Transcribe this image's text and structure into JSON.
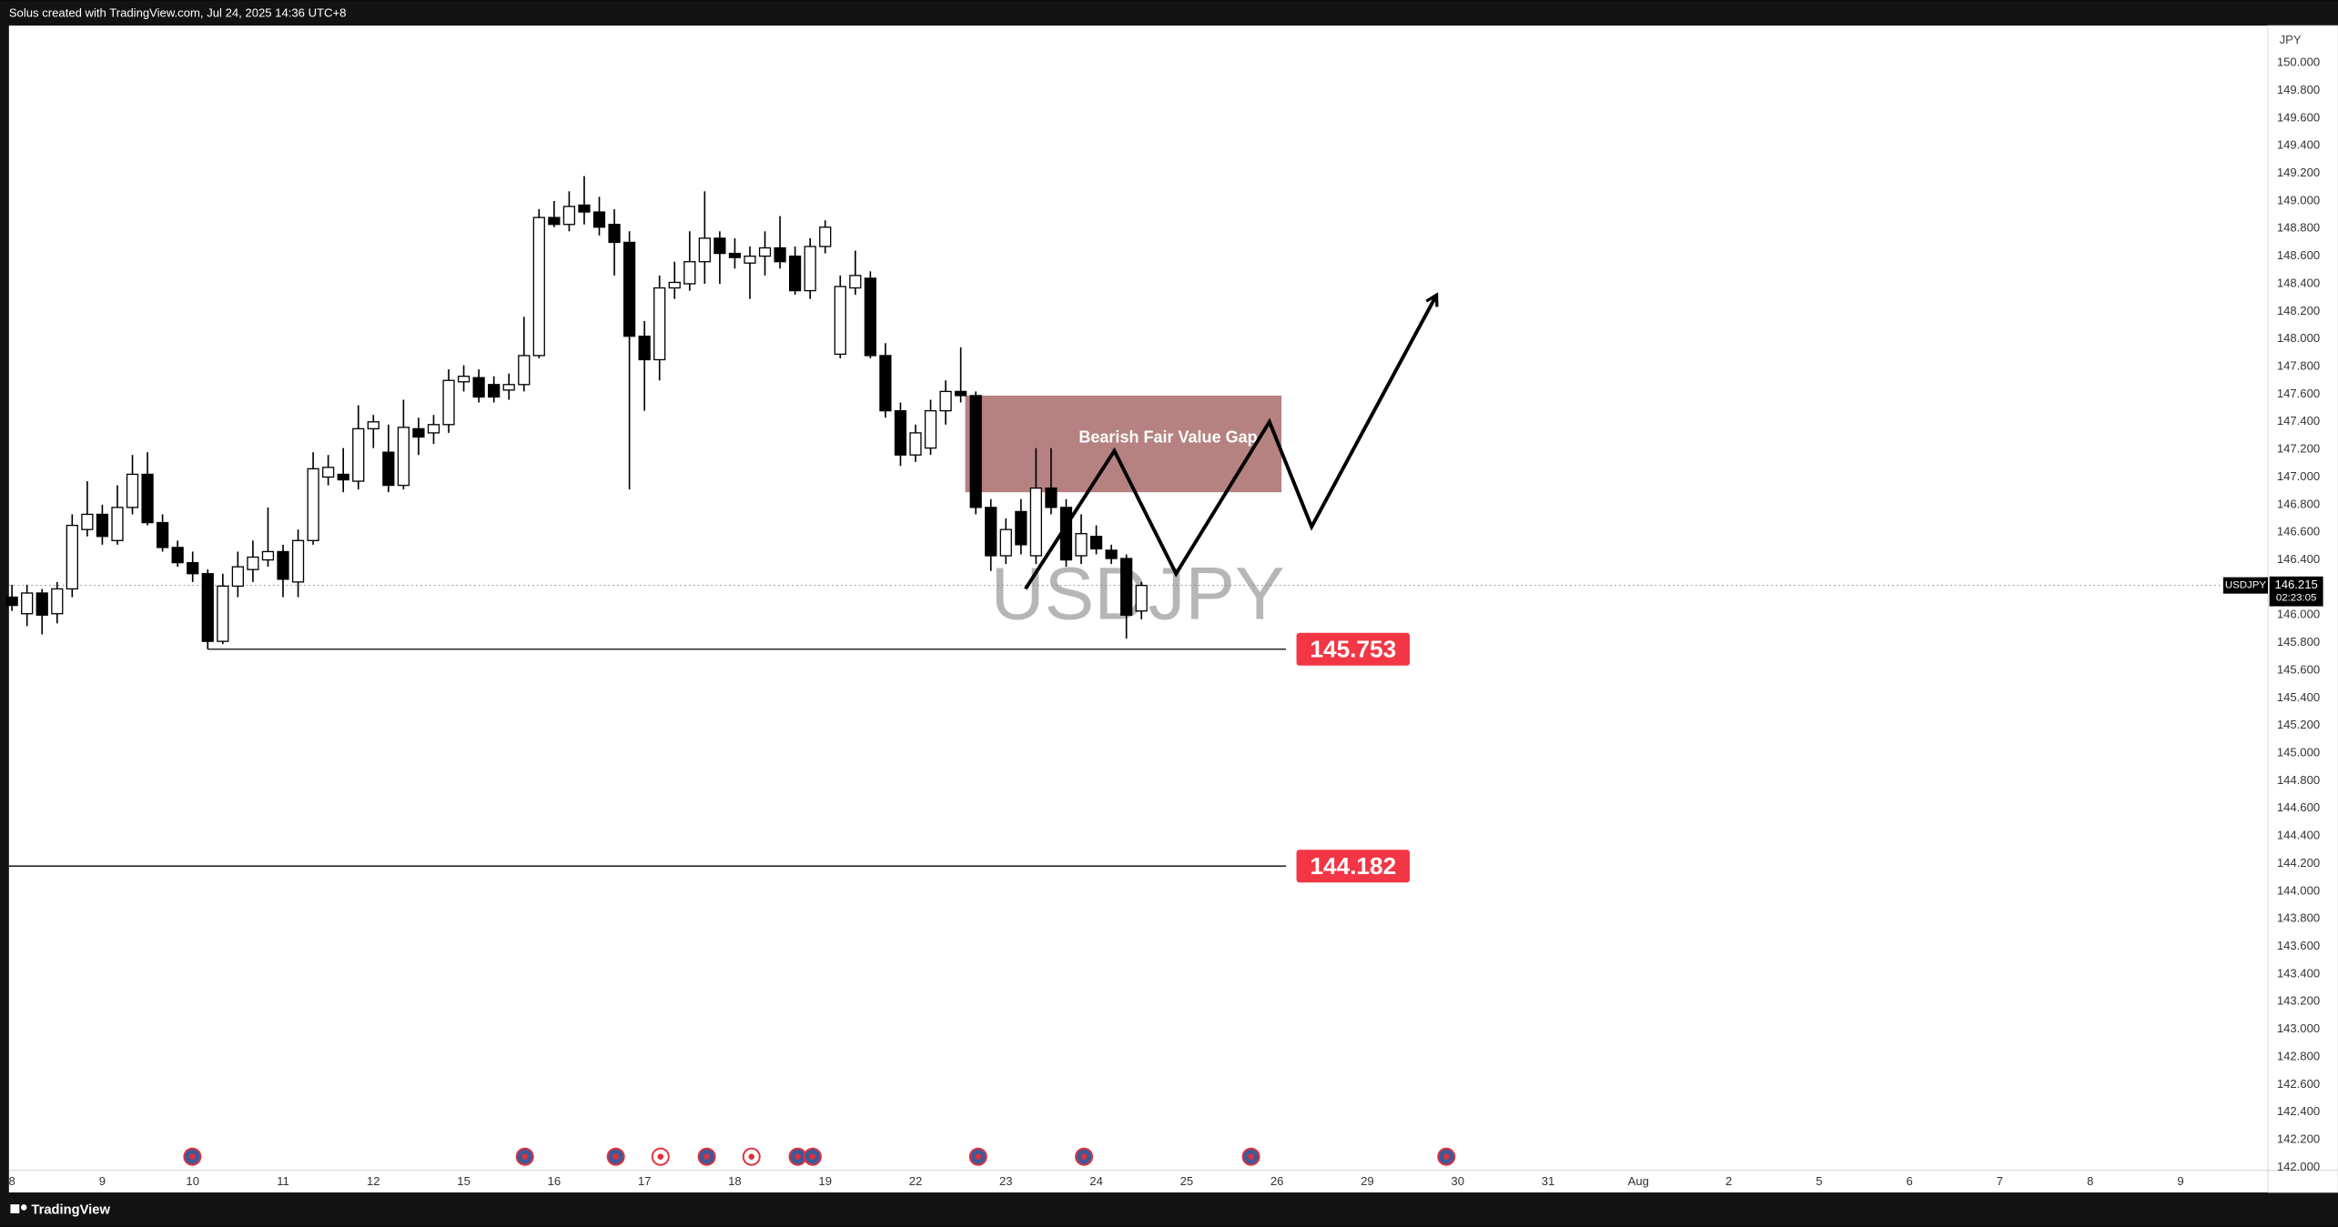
{
  "chart_data": {
    "type": "candlestick",
    "header": "Solus created with TradingView.com, Jul 24, 2025 14:36 UTC+8",
    "footer": "TradingView",
    "symbol": "USDJPY",
    "currency": "JPY",
    "countdown": "02:23:05",
    "up_color": "#ffffff",
    "down_color": "#000000",
    "x": [
      0,
      1,
      2,
      3,
      4,
      5,
      6,
      7,
      8,
      9,
      10,
      11,
      12,
      13,
      14,
      15,
      16,
      17,
      18,
      19,
      20,
      21,
      22,
      23,
      24,
      25,
      26,
      27,
      28,
      29,
      30,
      31,
      32,
      33,
      34,
      35,
      36,
      37,
      38,
      39,
      40,
      41,
      42,
      43,
      44,
      45,
      46,
      47,
      48,
      49,
      50,
      51,
      52,
      53,
      54,
      55,
      56,
      57,
      58,
      59,
      60,
      61,
      62,
      63,
      64,
      65,
      66,
      67,
      68,
      69,
      70,
      71,
      72,
      73,
      74,
      75
    ],
    "open": [
      146.13,
      146.01,
      146.16,
      146.01,
      146.19,
      146.62,
      146.73,
      146.54,
      146.78,
      147.02,
      146.67,
      146.49,
      146.38,
      146.3,
      145.81,
      146.21,
      146.33,
      146.4,
      146.46,
      146.24,
      146.54,
      147.0,
      147.02,
      146.97,
      147.35,
      147.18,
      146.94,
      147.35,
      147.32,
      147.38,
      147.69,
      147.72,
      147.67,
      147.63,
      147.67,
      147.88,
      148.88,
      148.83,
      148.97,
      148.92,
      148.83,
      148.7,
      148.02,
      147.85,
      148.37,
      148.4,
      148.56,
      148.73,
      148.62,
      148.55,
      148.6,
      148.66,
      148.6,
      148.35,
      148.67,
      147.89,
      148.37,
      148.44,
      147.88,
      147.48,
      147.16,
      147.21,
      147.48,
      147.62,
      147.59,
      146.78,
      146.43,
      146.75,
      146.43,
      146.92,
      146.78,
      146.43,
      146.57,
      146.47,
      146.41,
      146.03
    ],
    "high": [
      146.22,
      146.22,
      146.19,
      146.24,
      146.73,
      146.97,
      146.8,
      146.94,
      147.16,
      147.18,
      146.73,
      146.54,
      146.46,
      146.33,
      146.3,
      146.46,
      146.54,
      146.78,
      146.51,
      146.62,
      147.18,
      147.16,
      147.21,
      147.52,
      147.45,
      147.38,
      147.56,
      147.43,
      147.45,
      147.78,
      147.81,
      147.78,
      147.73,
      147.75,
      148.16,
      148.94,
      149.0,
      149.07,
      149.18,
      149.03,
      148.94,
      148.78,
      148.13,
      148.46,
      148.56,
      148.78,
      149.07,
      148.78,
      148.73,
      148.67,
      148.78,
      148.89,
      148.67,
      148.73,
      148.86,
      148.46,
      148.64,
      148.49,
      147.97,
      147.54,
      147.38,
      147.56,
      147.7,
      147.94,
      147.62,
      146.84,
      146.7,
      146.84,
      147.21,
      147.21,
      146.84,
      146.73,
      146.65,
      146.51,
      146.44,
      146.24
    ],
    "low": [
      146.03,
      145.92,
      145.86,
      145.94,
      146.13,
      146.57,
      146.51,
      146.51,
      146.73,
      146.65,
      146.46,
      146.35,
      146.24,
      145.753,
      145.79,
      146.13,
      146.24,
      146.35,
      146.13,
      146.13,
      146.51,
      146.94,
      146.89,
      146.91,
      147.21,
      146.89,
      146.91,
      147.16,
      147.24,
      147.32,
      147.62,
      147.54,
      147.54,
      147.56,
      147.62,
      147.86,
      148.81,
      148.78,
      148.83,
      148.75,
      148.46,
      146.91,
      147.48,
      147.7,
      148.29,
      148.35,
      148.4,
      148.4,
      148.51,
      148.29,
      148.46,
      148.51,
      148.32,
      148.29,
      148.62,
      147.86,
      148.32,
      147.86,
      147.43,
      147.08,
      147.11,
      147.16,
      147.38,
      147.54,
      146.73,
      146.32,
      146.37,
      146.44,
      146.37,
      146.73,
      146.35,
      146.37,
      146.44,
      146.37,
      145.83,
      145.97
    ],
    "close": [
      146.07,
      146.16,
      146.0,
      146.19,
      146.65,
      146.73,
      146.57,
      146.78,
      147.02,
      146.67,
      146.49,
      146.38,
      146.3,
      145.81,
      146.21,
      146.35,
      146.42,
      146.46,
      146.26,
      146.54,
      147.06,
      147.07,
      146.98,
      147.35,
      147.4,
      146.94,
      147.36,
      147.29,
      147.38,
      147.7,
      147.73,
      147.58,
      147.58,
      147.67,
      147.88,
      148.88,
      148.83,
      148.96,
      148.92,
      148.81,
      148.7,
      148.02,
      147.85,
      148.37,
      148.41,
      148.56,
      148.73,
      148.62,
      148.59,
      148.6,
      148.66,
      148.56,
      148.35,
      148.67,
      148.81,
      148.38,
      148.46,
      147.88,
      147.48,
      147.16,
      147.32,
      147.48,
      147.62,
      147.59,
      146.78,
      146.43,
      146.62,
      146.51,
      146.92,
      146.78,
      146.4,
      146.59,
      146.48,
      146.41,
      146.0,
      146.215
    ],
    "xlim": [
      -0.2,
      149.8
    ],
    "ylim": [
      141.98,
      150.27
    ],
    "xticks": [
      {
        "value": 0,
        "label": "8"
      },
      {
        "value": 6,
        "label": "9"
      },
      {
        "value": 12,
        "label": "10"
      },
      {
        "value": 18,
        "label": "11"
      },
      {
        "value": 24,
        "label": "12"
      },
      {
        "value": 30,
        "label": "15"
      },
      {
        "value": 36,
        "label": "16"
      },
      {
        "value": 42,
        "label": "17"
      },
      {
        "value": 48,
        "label": "18"
      },
      {
        "value": 54,
        "label": "19"
      },
      {
        "value": 60,
        "label": "22"
      },
      {
        "value": 66,
        "label": "23"
      },
      {
        "value": 72,
        "label": "24"
      },
      {
        "value": 78,
        "label": "25"
      },
      {
        "value": 84,
        "label": "26"
      },
      {
        "value": 90,
        "label": "29"
      },
      {
        "value": 96,
        "label": "30"
      },
      {
        "value": 102,
        "label": "31"
      },
      {
        "value": 108,
        "label": "Aug"
      },
      {
        "value": 114,
        "label": "2"
      },
      {
        "value": 120,
        "label": "5"
      },
      {
        "value": 126,
        "label": "6"
      },
      {
        "value": 132,
        "label": "7"
      },
      {
        "value": 138,
        "label": "8"
      },
      {
        "value": 144,
        "label": "9"
      }
    ],
    "yticks": [
      {
        "value": 150,
        "label": "150.000"
      },
      {
        "value": 149.8,
        "label": "149.800"
      },
      {
        "value": 149.6,
        "label": "149.600"
      },
      {
        "value": 149.4,
        "label": "149.400"
      },
      {
        "value": 149.2,
        "label": "149.200"
      },
      {
        "value": 149,
        "label": "149.000"
      },
      {
        "value": 148.8,
        "label": "148.800"
      },
      {
        "value": 148.6,
        "label": "148.600"
      },
      {
        "value": 148.4,
        "label": "148.400"
      },
      {
        "value": 148.2,
        "label": "148.200"
      },
      {
        "value": 148,
        "label": "148.000"
      },
      {
        "value": 147.8,
        "label": "147.800"
      },
      {
        "value": 147.6,
        "label": "147.600"
      },
      {
        "value": 147.4,
        "label": "147.400"
      },
      {
        "value": 147.2,
        "label": "147.200"
      },
      {
        "value": 147,
        "label": "147.000"
      },
      {
        "value": 146.8,
        "label": "146.800"
      },
      {
        "value": 146.6,
        "label": "146.600"
      },
      {
        "value": 146.4,
        "label": "146.400"
      },
      {
        "value": 146.2,
        "label": "146.200"
      },
      {
        "value": 146,
        "label": "146.000"
      },
      {
        "value": 145.8,
        "label": "145.800"
      },
      {
        "value": 145.6,
        "label": "145.600"
      },
      {
        "value": 145.4,
        "label": "145.400"
      },
      {
        "value": 145.2,
        "label": "145.200"
      },
      {
        "value": 145,
        "label": "145.000"
      },
      {
        "value": 144.8,
        "label": "144.800"
      },
      {
        "value": 144.6,
        "label": "144.600"
      },
      {
        "value": 144.4,
        "label": "144.400"
      },
      {
        "value": 144.2,
        "label": "144.200"
      },
      {
        "value": 144,
        "label": "144.000"
      },
      {
        "value": 143.8,
        "label": "143.800"
      },
      {
        "value": 143.6,
        "label": "143.600"
      },
      {
        "value": 143.4,
        "label": "143.400"
      },
      {
        "value": 143.2,
        "label": "143.200"
      },
      {
        "value": 143,
        "label": "143.000"
      },
      {
        "value": 142.8,
        "label": "142.800"
      },
      {
        "value": 142.6,
        "label": "142.600"
      },
      {
        "value": 142.4,
        "label": "142.400"
      },
      {
        "value": 142.2,
        "label": "142.200"
      },
      {
        "value": 142,
        "label": "142.000"
      }
    ],
    "zone": {
      "label": "Bearish Fair Value Gap",
      "color": "#a96b6b",
      "top": 147.59,
      "bottom": 146.89,
      "x_start": 63.3,
      "x_end": 84.3
    },
    "levels": [
      {
        "value": 145.753,
        "x_start": 13.0,
        "x_end": 84.6,
        "color": "#f23645"
      },
      {
        "value": 144.182,
        "x_start": -0.2,
        "x_end": 84.6,
        "color": "#f23645"
      }
    ],
    "projection": {
      "x": [
        67.3,
        73.2,
        77.3,
        83.5,
        86.3,
        94.6
      ],
      "y": [
        146.19,
        147.19,
        146.3,
        147.4,
        146.64,
        148.32
      ]
    }
  }
}
